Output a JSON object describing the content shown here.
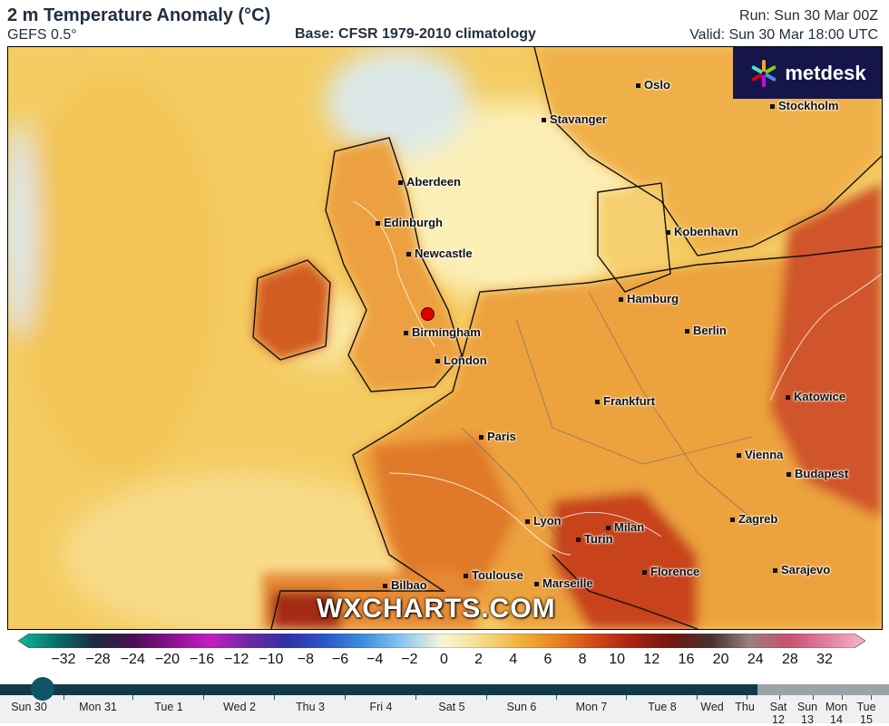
{
  "header": {
    "title": "2 m Temperature Anomaly (°C)",
    "model": "GEFS 0.5°",
    "base": "Base: CFSR 1979-2010 climatology",
    "run": "Run: Sun 30 Mar 00Z",
    "valid": "Valid: Sun 30 Mar 18:00 UTC"
  },
  "logo": {
    "text": "metdesk",
    "icon": "metdesk-star-icon"
  },
  "watermark": "WXCHARTS.COM",
  "cities": [
    {
      "name": "Oslo"
    },
    {
      "name": "Stavanger"
    },
    {
      "name": "Stockholm"
    },
    {
      "name": "Aberdeen"
    },
    {
      "name": "Edinburgh"
    },
    {
      "name": "Newcastle"
    },
    {
      "name": "Kobenhavn"
    },
    {
      "name": "Hamburg"
    },
    {
      "name": "Birmingham"
    },
    {
      "name": "Berlin"
    },
    {
      "name": "London"
    },
    {
      "name": "Frankfurt"
    },
    {
      "name": "Katowice"
    },
    {
      "name": "Paris"
    },
    {
      "name": "Vienna"
    },
    {
      "name": "Budapest"
    },
    {
      "name": "Lyon"
    },
    {
      "name": "Milan"
    },
    {
      "name": "Zagreb"
    },
    {
      "name": "Turin"
    },
    {
      "name": "Bilbao"
    },
    {
      "name": "Toulouse"
    },
    {
      "name": "Marseille"
    },
    {
      "name": "Florence"
    },
    {
      "name": "Sarajevo"
    }
  ],
  "colorbar": {
    "labels": [
      "−32",
      "−28",
      "−24",
      "−20",
      "−16",
      "−12",
      "−10",
      "−8",
      "−6",
      "−4",
      "−2",
      "0",
      "2",
      "4",
      "6",
      "8",
      "10",
      "12",
      "16",
      "20",
      "24",
      "28",
      "32"
    ],
    "colors": [
      "#10b89c",
      "#0a6e68",
      "#1b2a40",
      "#4a1050",
      "#8a1090",
      "#c020c0",
      "#6a2aa0",
      "#3030a8",
      "#2a58c8",
      "#3e90e0",
      "#8cc8f0",
      "#f6f6d8",
      "#f5dc8c",
      "#f0b43c",
      "#e88220",
      "#d04818",
      "#a82010",
      "#6e1810",
      "#4a3030",
      "#9a8080",
      "#c85070",
      "#e080a0",
      "#f4b8c8"
    ]
  },
  "timeline": {
    "days": [
      "Sun 30",
      "Mon 31",
      "Tue 1",
      "Wed 2",
      "Thu 3",
      "Fri 4",
      "Sat 5",
      "Sun 6",
      "Mon 7",
      "Tue 8",
      "Wed",
      "Thu",
      "Sat 12",
      "Sun 13",
      "Mon 14",
      "Tue 15"
    ],
    "current": "Sun 30"
  },
  "map_colors": {
    "ocean_base": "#f4cc62",
    "north_sea": "#fbeaa8",
    "cold_anomaly": "#d8e8ec",
    "warm_land": "#eea040",
    "hot_land": "#dc6a24",
    "hottest": "#b8341a"
  }
}
